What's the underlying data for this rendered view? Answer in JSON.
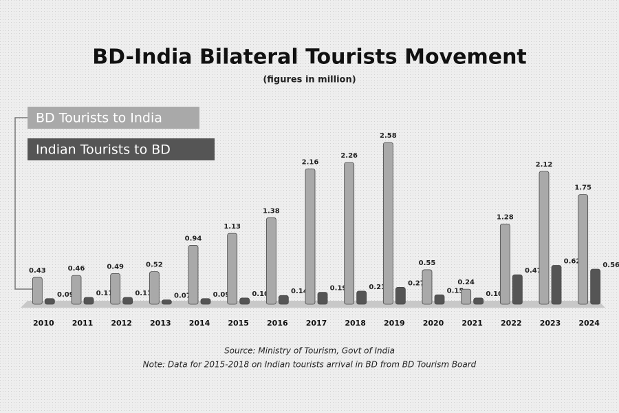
{
  "chart_data": {
    "type": "bar",
    "title": "BD-India Bilateral Tourists Movement",
    "subtitle": "(figures in million)",
    "categories": [
      "2010",
      "2011",
      "2012",
      "2013",
      "2014",
      "2015",
      "2016",
      "2017",
      "2018",
      "2019",
      "2020",
      "2021",
      "2022",
      "2023",
      "2024"
    ],
    "series": [
      {
        "name": "BD Tourists to India",
        "color": "#a9a9a9",
        "values": [
          0.43,
          0.46,
          0.49,
          0.52,
          0.94,
          1.13,
          1.38,
          2.16,
          2.26,
          2.58,
          0.55,
          0.24,
          1.28,
          2.12,
          1.75
        ],
        "value_labels": [
          "0.43",
          "0.46",
          "0.49",
          "0.52",
          "0.94",
          "1.13",
          "1.38",
          "2.16",
          "2.26",
          "2.58",
          "0.55",
          "0.24",
          "1.28",
          "2.12",
          "1.75"
        ]
      },
      {
        "name": "Indian Tourists to BD",
        "color": "#555555",
        "values": [
          0.09,
          0.11,
          0.11,
          0.07,
          0.09,
          0.1,
          0.14,
          0.19,
          0.21,
          0.27,
          0.15,
          0.1,
          0.47,
          0.62,
          0.56
        ],
        "value_labels": [
          "0.09",
          "0.11",
          "0.11",
          "0.07",
          "0.09",
          "0.10",
          "0.14",
          "0.19",
          "0.21",
          "0.27",
          "0.15",
          "0.10",
          "0.47",
          "0.62",
          "0.56"
        ]
      }
    ],
    "source": "Source: Ministry of Tourism, Govt of India",
    "note": "Note: Data for 2015-2018  on Indian tourists arrival in BD from BD Tourism Board"
  }
}
